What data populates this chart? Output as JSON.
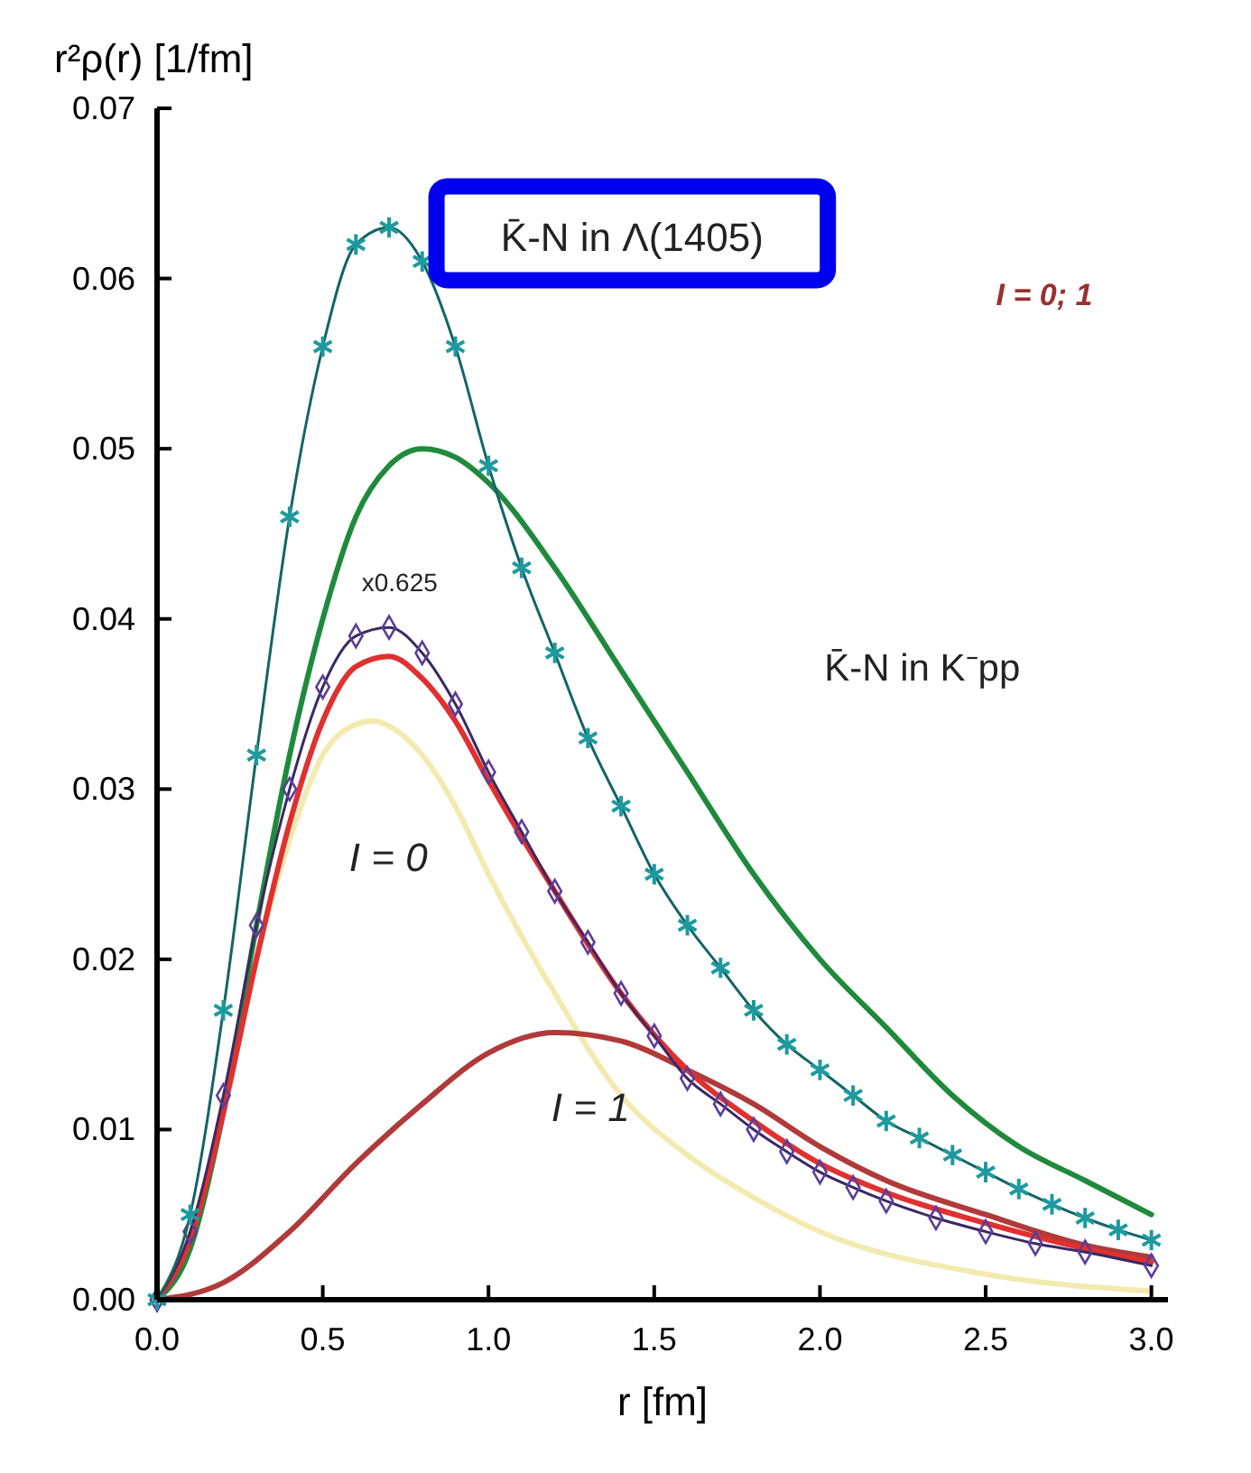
{
  "chart_data": {
    "type": "line",
    "xlabel": "r  [fm]",
    "ylabel": "r²ρ(r)  [1/fm]",
    "xlim": [
      0,
      3.05
    ],
    "ylim": [
      0,
      0.07
    ],
    "xticks": [
      {
        "value": 0,
        "label": "0.0"
      },
      {
        "value": 0.5,
        "label": "0.5"
      },
      {
        "value": 1,
        "label": "1.0"
      },
      {
        "value": 1.5,
        "label": "1.5"
      },
      {
        "value": 2,
        "label": "2.0"
      },
      {
        "value": 2.5,
        "label": "2.5"
      },
      {
        "value": 3,
        "label": "3.0"
      }
    ],
    "yticks": [
      {
        "value": 0,
        "label": "0.00"
      },
      {
        "value": 0.01,
        "label": "0.01"
      },
      {
        "value": 0.02,
        "label": "0.02"
      },
      {
        "value": 0.03,
        "label": "0.03"
      },
      {
        "value": 0.04,
        "label": "0.04"
      },
      {
        "value": 0.05,
        "label": "0.05"
      },
      {
        "value": 0.06,
        "label": "0.06"
      },
      {
        "value": 0.07,
        "label": "0.07"
      }
    ],
    "grid": false,
    "series": [
      {
        "color": "#f3eab0",
        "marker": "none",
        "x": [
          0,
          0.1,
          0.2,
          0.3,
          0.4,
          0.5,
          0.6,
          0.65,
          0.7,
          0.8,
          0.9,
          1.0,
          1.2,
          1.4,
          1.6,
          1.8,
          2.0,
          2.5,
          3.0
        ],
        "values": [
          0,
          0.004,
          0.011,
          0.02,
          0.027,
          0.032,
          0.0338,
          0.034,
          0.0337,
          0.032,
          0.029,
          0.025,
          0.018,
          0.012,
          0.0085,
          0.006,
          0.004,
          0.0015,
          0.0005
        ]
      },
      {
        "color": "#1f8a3c",
        "marker": "none",
        "x": [
          0,
          0.1,
          0.2,
          0.3,
          0.4,
          0.5,
          0.6,
          0.7,
          0.8,
          0.9,
          1.0,
          1.2,
          1.4,
          1.6,
          1.8,
          2.0,
          2.2,
          2.4,
          2.6,
          2.8,
          3.0
        ],
        "values": [
          0,
          0.003,
          0.011,
          0.022,
          0.032,
          0.04,
          0.046,
          0.049,
          0.05,
          0.0495,
          0.048,
          0.043,
          0.037,
          0.031,
          0.025,
          0.02,
          0.016,
          0.012,
          0.009,
          0.007,
          0.005
        ]
      },
      {
        "color": "#b03a3a",
        "marker": "none",
        "x": [
          0,
          0.2,
          0.4,
          0.6,
          0.8,
          1.0,
          1.2,
          1.4,
          1.6,
          1.8,
          2.0,
          2.2,
          2.5,
          2.8,
          3.0
        ],
        "values": [
          0,
          0.001,
          0.004,
          0.008,
          0.0115,
          0.0145,
          0.0157,
          0.0152,
          0.0135,
          0.0115,
          0.009,
          0.007,
          0.005,
          0.0032,
          0.0025
        ]
      },
      {
        "color": "#e03030",
        "marker": "none",
        "x": [
          0,
          0.1,
          0.2,
          0.3,
          0.4,
          0.5,
          0.6,
          0.7,
          0.8,
          0.9,
          1.0,
          1.2,
          1.4,
          1.6,
          1.8,
          2.0,
          2.2,
          2.5,
          2.8,
          3.0
        ],
        "values": [
          0,
          0.0035,
          0.011,
          0.02,
          0.028,
          0.034,
          0.0372,
          0.0378,
          0.0365,
          0.034,
          0.0305,
          0.024,
          0.018,
          0.0135,
          0.0105,
          0.008,
          0.0063,
          0.0045,
          0.003,
          0.0022
        ]
      },
      {
        "color": "#5a3d9a",
        "marker": "diamond",
        "x": [
          0,
          0.1,
          0.2,
          0.3,
          0.4,
          0.5,
          0.6,
          0.7,
          0.8,
          0.9,
          1.0,
          1.1,
          1.2,
          1.3,
          1.4,
          1.5,
          1.6,
          1.7,
          1.8,
          1.9,
          2.0,
          2.1,
          2.2,
          2.35,
          2.5,
          2.65,
          2.8,
          3.0
        ],
        "values": [
          0,
          0.004,
          0.012,
          0.022,
          0.03,
          0.036,
          0.039,
          0.0395,
          0.038,
          0.035,
          0.031,
          0.0275,
          0.024,
          0.021,
          0.018,
          0.0155,
          0.013,
          0.0115,
          0.01,
          0.0087,
          0.0075,
          0.0066,
          0.0058,
          0.0048,
          0.004,
          0.0033,
          0.0028,
          0.002
        ]
      },
      {
        "color": "#1e9a9e",
        "marker": "cross",
        "x": [
          0,
          0.1,
          0.2,
          0.3,
          0.4,
          0.5,
          0.6,
          0.7,
          0.8,
          0.9,
          1.0,
          1.1,
          1.2,
          1.3,
          1.4,
          1.5,
          1.6,
          1.7,
          1.8,
          1.9,
          2.0,
          2.1,
          2.2,
          2.3,
          2.4,
          2.5,
          2.6,
          2.7,
          2.8,
          2.9,
          3.0
        ],
        "values": [
          0,
          0.005,
          0.017,
          0.032,
          0.046,
          0.056,
          0.062,
          0.063,
          0.061,
          0.056,
          0.049,
          0.043,
          0.038,
          0.033,
          0.029,
          0.025,
          0.022,
          0.0195,
          0.017,
          0.015,
          0.0135,
          0.012,
          0.0105,
          0.0095,
          0.0085,
          0.0075,
          0.0065,
          0.0056,
          0.0048,
          0.0041,
          0.0035
        ]
      }
    ],
    "annotations": [
      "K̄-N in Λ(1405)",
      "I = 0; 1",
      "x0.625",
      "K̄-N in K⁻pp",
      "I = 0",
      "I = 1"
    ]
  }
}
